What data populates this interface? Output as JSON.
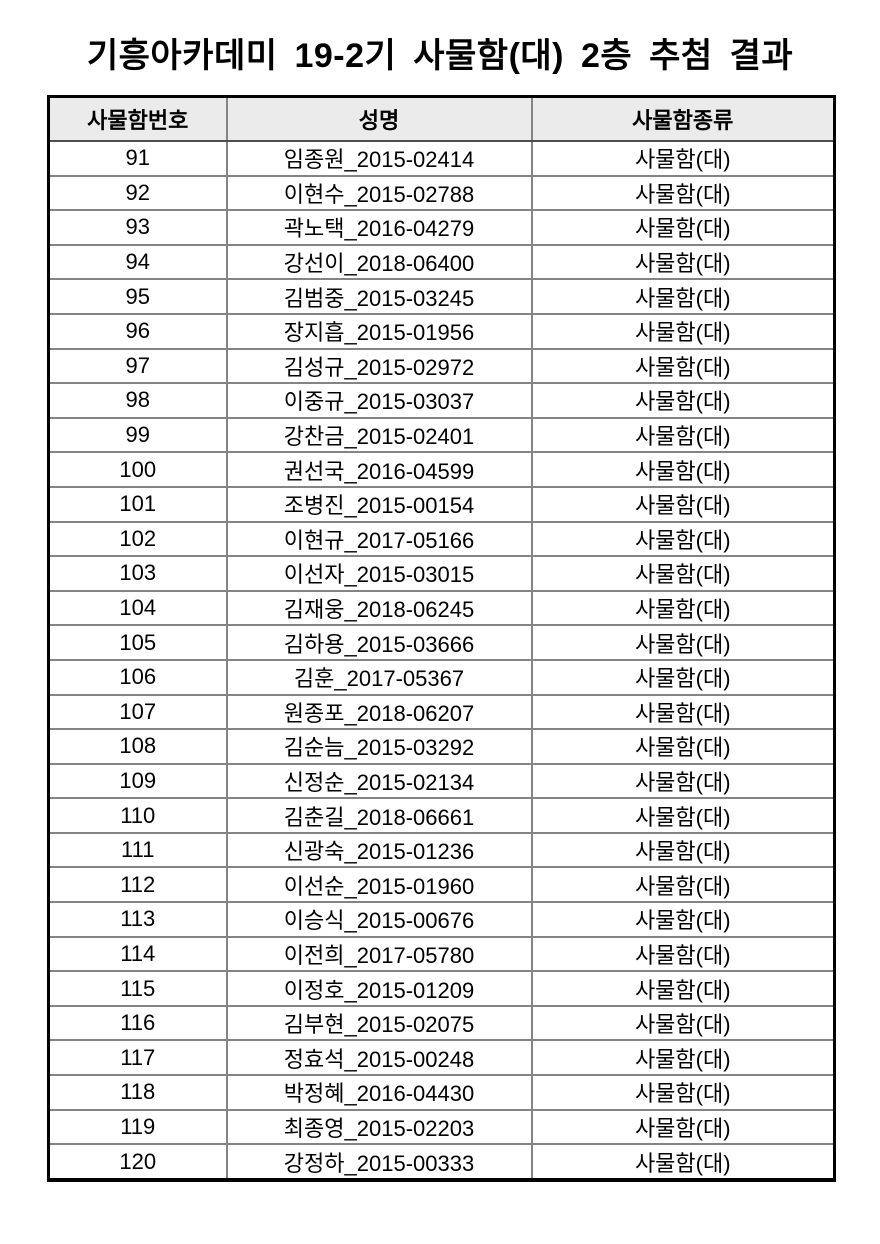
{
  "page": {
    "title": "기흥아카데미 19-2기 사물함(대) 2층 추첨 결과"
  },
  "colors": {
    "header_bg": "#ebebeb",
    "grid_line": "#848484",
    "outer_border": "#000000",
    "text": "#000000"
  },
  "table": {
    "headers": [
      "사물함번호",
      "성명",
      "사물함종류"
    ],
    "rows": [
      {
        "no": "91",
        "name": "임종원_2015-02414",
        "type": "사물함(대)"
      },
      {
        "no": "92",
        "name": "이현수_2015-02788",
        "type": "사물함(대)"
      },
      {
        "no": "93",
        "name": "곽노택_2016-04279",
        "type": "사물함(대)"
      },
      {
        "no": "94",
        "name": "강선이_2018-06400",
        "type": "사물함(대)"
      },
      {
        "no": "95",
        "name": "김범중_2015-03245",
        "type": "사물함(대)"
      },
      {
        "no": "96",
        "name": "장지흡_2015-01956",
        "type": "사물함(대)"
      },
      {
        "no": "97",
        "name": "김성규_2015-02972",
        "type": "사물함(대)"
      },
      {
        "no": "98",
        "name": "이중규_2015-03037",
        "type": "사물함(대)"
      },
      {
        "no": "99",
        "name": "강찬금_2015-02401",
        "type": "사물함(대)"
      },
      {
        "no": "100",
        "name": "권선국_2016-04599",
        "type": "사물함(대)"
      },
      {
        "no": "101",
        "name": "조병진_2015-00154",
        "type": "사물함(대)"
      },
      {
        "no": "102",
        "name": "이현규_2017-05166",
        "type": "사물함(대)"
      },
      {
        "no": "103",
        "name": "이선자_2015-03015",
        "type": "사물함(대)"
      },
      {
        "no": "104",
        "name": "김재웅_2018-06245",
        "type": "사물함(대)"
      },
      {
        "no": "105",
        "name": "김하용_2015-03666",
        "type": "사물함(대)"
      },
      {
        "no": "106",
        "name": "김훈_2017-05367",
        "type": "사물함(대)"
      },
      {
        "no": "107",
        "name": "원종포_2018-06207",
        "type": "사물함(대)"
      },
      {
        "no": "108",
        "name": "김순늠_2015-03292",
        "type": "사물함(대)"
      },
      {
        "no": "109",
        "name": "신정순_2015-02134",
        "type": "사물함(대)"
      },
      {
        "no": "110",
        "name": "김춘길_2018-06661",
        "type": "사물함(대)"
      },
      {
        "no": "111",
        "name": "신광숙_2015-01236",
        "type": "사물함(대)"
      },
      {
        "no": "112",
        "name": "이선순_2015-01960",
        "type": "사물함(대)"
      },
      {
        "no": "113",
        "name": "이승식_2015-00676",
        "type": "사물함(대)"
      },
      {
        "no": "114",
        "name": "이전희_2017-05780",
        "type": "사물함(대)"
      },
      {
        "no": "115",
        "name": "이정호_2015-01209",
        "type": "사물함(대)"
      },
      {
        "no": "116",
        "name": "김부현_2015-02075",
        "type": "사물함(대)"
      },
      {
        "no": "117",
        "name": "정효석_2015-00248",
        "type": "사물함(대)"
      },
      {
        "no": "118",
        "name": "박정혜_2016-04430",
        "type": "사물함(대)"
      },
      {
        "no": "119",
        "name": "최종영_2015-02203",
        "type": "사물함(대)"
      },
      {
        "no": "120",
        "name": "강정하_2015-00333",
        "type": "사물함(대)"
      }
    ]
  }
}
